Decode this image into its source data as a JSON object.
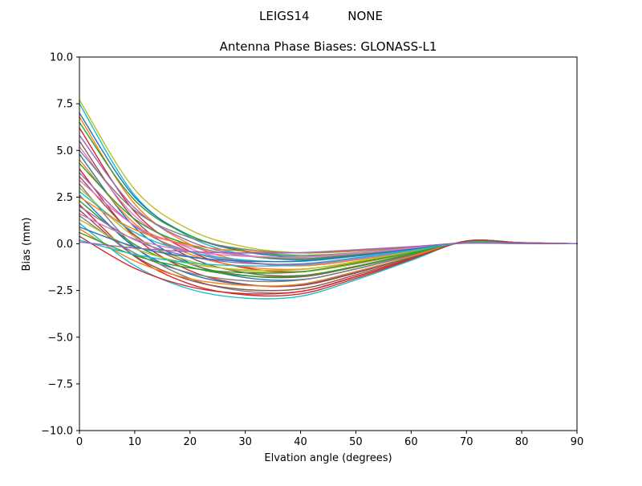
{
  "figure": {
    "background": "#ffffff",
    "axis_color": "#000000"
  },
  "chart_data": {
    "type": "line",
    "suptitle": "LEIGS14          NONE",
    "title": "Antenna Phase Biases: GLONASS-L1",
    "xlabel": "Elvation angle (degrees)",
    "ylabel": "Bias (mm)",
    "xlim": [
      0,
      90
    ],
    "ylim": [
      -10,
      10
    ],
    "grid": false,
    "legend": "none",
    "xticks": {
      "values": [
        0,
        10,
        20,
        30,
        40,
        50,
        60,
        70,
        80,
        90
      ],
      "labels": [
        "0",
        "10",
        "20",
        "30",
        "40",
        "50",
        "60",
        "70",
        "80",
        "90"
      ]
    },
    "yticks": {
      "values": [
        -10,
        -7.5,
        -5,
        -2.5,
        0,
        2.5,
        5,
        7.5,
        10
      ],
      "labels": [
        "−10.0",
        "−7.5",
        "−5.0",
        "−2.5",
        "0.0",
        "2.5",
        "5.0",
        "7.5",
        "10.0"
      ]
    },
    "x": [
      0,
      10,
      20,
      30,
      40,
      50,
      60,
      70,
      80,
      90
    ],
    "series": [
      {
        "name": "line-01",
        "color": "#bcbd22",
        "values": [
          7.7,
          2.91,
          0.75,
          -0.17,
          -0.48,
          -0.4,
          -0.19,
          0.06,
          0.02,
          0.01
        ]
      },
      {
        "name": "line-02",
        "color": "#17becf",
        "values": [
          7.5,
          2.6,
          0.36,
          -0.59,
          -0.87,
          -0.66,
          -0.31,
          0.08,
          0.02,
          0.01
        ]
      },
      {
        "name": "line-03",
        "color": "#1f77b4",
        "values": [
          7.0,
          2.5,
          0.44,
          -0.43,
          -0.7,
          -0.54,
          -0.25,
          0.07,
          0.02,
          0.01
        ]
      },
      {
        "name": "line-04",
        "color": "#ff7f0e",
        "values": [
          6.8,
          2.13,
          -0.03,
          -0.94,
          -1.18,
          -0.87,
          -0.4,
          0.1,
          0.03,
          0.01
        ]
      },
      {
        "name": "line-05",
        "color": "#2ca02c",
        "values": [
          6.5,
          2.33,
          0.44,
          -0.37,
          -0.62,
          -0.48,
          -0.22,
          0.07,
          0.02,
          0.01
        ]
      },
      {
        "name": "line-06",
        "color": "#d62728",
        "values": [
          6.2,
          1.71,
          -0.41,
          -1.29,
          -1.49,
          -1.07,
          -0.5,
          0.11,
          0.04,
          0.01
        ]
      },
      {
        "name": "line-07",
        "color": "#9467bd",
        "values": [
          5.8,
          1.92,
          0.13,
          -0.62,
          -0.84,
          -0.62,
          -0.29,
          0.08,
          0.02,
          0.01
        ]
      },
      {
        "name": "line-08",
        "color": "#8c564b",
        "values": [
          5.5,
          1.29,
          -0.72,
          -1.55,
          -1.7,
          -1.21,
          -0.56,
          0.12,
          0.04,
          0.01
        ]
      },
      {
        "name": "line-09",
        "color": "#e377c2",
        "values": [
          5.2,
          1.49,
          -0.25,
          -0.97,
          -1.14,
          -0.83,
          -0.38,
          0.09,
          0.03,
          0.01
        ]
      },
      {
        "name": "line-10",
        "color": "#7f7f7f",
        "values": [
          5.0,
          1.79,
          0.33,
          -0.29,
          -0.49,
          -0.38,
          -0.18,
          0.06,
          0.01,
          0.01
        ]
      },
      {
        "name": "line-11",
        "color": "#1f77b4",
        "values": [
          4.8,
          0.88,
          -1.03,
          -1.81,
          -1.92,
          -1.35,
          -0.63,
          0.12,
          0.04,
          0.01
        ]
      },
      {
        "name": "line-12",
        "color": "#ff7f0e",
        "values": [
          4.5,
          1.08,
          -0.56,
          -1.23,
          -1.36,
          -0.97,
          -0.45,
          0.09,
          0.03,
          0.01
        ]
      },
      {
        "name": "line-13",
        "color": "#2ca02c",
        "values": [
          4.3,
          1.32,
          -0.07,
          -0.65,
          -0.8,
          -0.58,
          -0.27,
          0.06,
          0.02,
          0.01
        ]
      },
      {
        "name": "line-14",
        "color": "#d62728",
        "values": [
          4.0,
          0.37,
          -1.44,
          -2.17,
          -2.23,
          -1.56,
          -0.72,
          0.14,
          0.05,
          0.01
        ]
      },
      {
        "name": "line-15",
        "color": "#9467bd",
        "values": [
          3.8,
          0.94,
          -0.43,
          -0.99,
          -1.1,
          -0.78,
          -0.36,
          0.08,
          0.03,
          0.01
        ]
      },
      {
        "name": "line-16",
        "color": "#8c564b",
        "values": [
          3.6,
          0.47,
          -1.08,
          -1.7,
          -1.77,
          -1.24,
          -0.57,
          0.11,
          0.04,
          0.01
        ]
      },
      {
        "name": "line-17",
        "color": "#e377c2",
        "values": [
          3.4,
          0.98,
          -0.15,
          -0.62,
          -0.73,
          -0.53,
          -0.25,
          0.06,
          0.02,
          0.01
        ]
      },
      {
        "name": "line-18",
        "color": "#7f7f7f",
        "values": [
          3.2,
          -0.15,
          -1.86,
          -2.54,
          -2.55,
          -1.77,
          -0.82,
          0.15,
          0.06,
          0.01
        ]
      },
      {
        "name": "line-19",
        "color": "#bcbd22",
        "values": [
          3.0,
          0.37,
          -0.93,
          -1.45,
          -1.51,
          -1.06,
          -0.49,
          0.1,
          0.03,
          0.01
        ]
      },
      {
        "name": "line-20",
        "color": "#17becf",
        "values": [
          2.8,
          0.61,
          -0.44,
          -0.87,
          -0.94,
          -0.67,
          -0.31,
          0.07,
          0.02,
          0.01
        ]
      },
      {
        "name": "line-21",
        "color": "#1f77b4",
        "values": [
          2.6,
          -0.19,
          -1.62,
          -2.19,
          -2.19,
          -1.52,
          -0.7,
          0.13,
          0.05,
          0.01
        ]
      },
      {
        "name": "line-22",
        "color": "#ff7f0e",
        "values": [
          2.5,
          0.76,
          -0.06,
          -0.4,
          -0.48,
          -0.35,
          -0.16,
          0.04,
          0.01,
          0.01
        ]
      },
      {
        "name": "line-23",
        "color": "#2ca02c",
        "values": [
          2.3,
          -0.04,
          -1.24,
          -1.71,
          -1.72,
          -1.2,
          -0.55,
          0.1,
          0.04,
          0.01
        ]
      },
      {
        "name": "line-24",
        "color": "#d62728",
        "values": [
          2.1,
          -0.68,
          -2.16,
          -2.73,
          -2.68,
          -1.85,
          -0.86,
          0.15,
          0.06,
          0.01
        ]
      },
      {
        "name": "line-25",
        "color": "#9467bd",
        "values": [
          2.0,
          0.21,
          -0.68,
          -1.04,
          -1.07,
          -0.75,
          -0.35,
          0.07,
          0.02,
          0.01
        ]
      },
      {
        "name": "line-26",
        "color": "#8c564b",
        "values": [
          1.8,
          -0.65,
          -1.95,
          -2.45,
          -2.41,
          -1.66,
          -0.77,
          0.14,
          0.05,
          0.01
        ]
      },
      {
        "name": "line-27",
        "color": "#e377c2",
        "values": [
          1.6,
          0.26,
          -0.4,
          -0.67,
          -0.7,
          -0.49,
          -0.23,
          0.04,
          0.02,
          0.01
        ]
      },
      {
        "name": "line-28",
        "color": "#7f7f7f",
        "values": [
          1.5,
          -0.5,
          -1.56,
          -1.98,
          -1.94,
          -1.34,
          -0.62,
          0.11,
          0.04,
          0.01
        ]
      },
      {
        "name": "line-29",
        "color": "#bcbd22",
        "values": [
          1.3,
          -0.26,
          -1.07,
          -1.39,
          -1.38,
          -0.95,
          -0.44,
          0.08,
          0.03,
          0.01
        ]
      },
      {
        "name": "line-30",
        "color": "#17becf",
        "values": [
          1.1,
          -1.17,
          -2.43,
          -2.91,
          -2.81,
          -1.93,
          -0.89,
          0.15,
          0.06,
          0.01
        ]
      },
      {
        "name": "line-31",
        "color": "#1f77b4",
        "values": [
          0.9,
          -0.16,
          -0.71,
          -0.93,
          -0.92,
          -0.64,
          -0.29,
          0.05,
          0.02,
          0.01
        ]
      },
      {
        "name": "line-32",
        "color": "#ff7f0e",
        "values": [
          0.8,
          -0.92,
          -1.87,
          -2.23,
          -2.16,
          -1.48,
          -0.68,
          0.12,
          0.05,
          0.01
        ]
      },
      {
        "name": "line-33",
        "color": "#2ca02c",
        "values": [
          0.6,
          -0.62,
          -1.29,
          -1.55,
          -1.5,
          -1.03,
          -0.48,
          0.08,
          0.03,
          0.01
        ]
      },
      {
        "name": "line-34",
        "color": "#d62728",
        "values": [
          0.4,
          -1.31,
          -2.3,
          -2.67,
          -2.55,
          -1.75,
          -0.81,
          0.14,
          0.05,
          0.01
        ]
      },
      {
        "name": "line-35",
        "color": "#17becf",
        "values": [
          0.2,
          -0.57,
          -1.02,
          -1.18,
          -1.13,
          -0.78,
          -0.36,
          0.06,
          0.02,
          0.01
        ]
      },
      {
        "name": "line-36",
        "color": "#9467bd",
        "values": [
          0.1,
          -0.23,
          -0.42,
          -0.49,
          -0.47,
          -0.32,
          -0.15,
          0.03,
          0.01,
          0.01
        ]
      }
    ]
  }
}
